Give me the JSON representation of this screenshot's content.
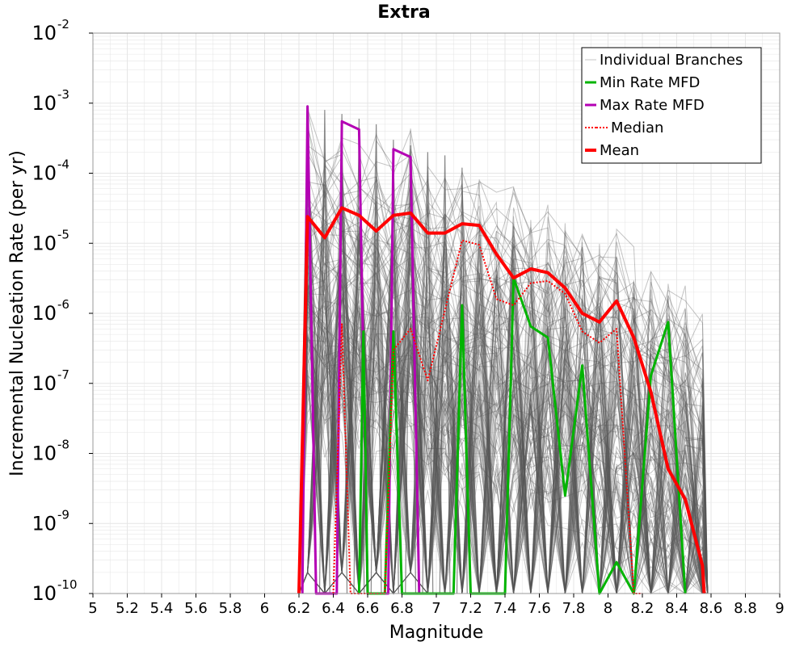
{
  "chart_data": {
    "type": "line",
    "title": "Extra",
    "xlabel": "Magnitude",
    "ylabel": "Incremental Nucleation Rate (per yr)",
    "xlim": [
      5,
      9
    ],
    "ylim": [
      1e-10,
      0.01
    ],
    "yscale": "log",
    "grid": true,
    "legend_position": "top-right",
    "x_ticks": [
      "5",
      "5.2",
      "5.4",
      "5.6",
      "5.8",
      "6",
      "6.2",
      "6.4",
      "6.6",
      "6.8",
      "7",
      "7.2",
      "7.4",
      "7.6",
      "7.8",
      "8",
      "8.2",
      "8.4",
      "8.6",
      "8.8",
      "9"
    ],
    "y_ticks": [
      {
        "base": "10",
        "exp": "-10",
        "value": 1e-10
      },
      {
        "base": "10",
        "exp": "-9",
        "value": 1e-09
      },
      {
        "base": "10",
        "exp": "-8",
        "value": 1e-08
      },
      {
        "base": "10",
        "exp": "-7",
        "value": 1e-07
      },
      {
        "base": "10",
        "exp": "-6",
        "value": 1e-06
      },
      {
        "base": "10",
        "exp": "-5",
        "value": 1e-05
      },
      {
        "base": "10",
        "exp": "-4",
        "value": 0.0001
      },
      {
        "base": "10",
        "exp": "-3",
        "value": 0.001
      },
      {
        "base": "10",
        "exp": "-2",
        "value": 0.01
      }
    ],
    "colors": {
      "branches": "#555555",
      "min": "#00b400",
      "max": "#b400b4",
      "median": "#ff0000",
      "mean": "#ff0000",
      "grid": "#e6e6e6",
      "axis": "#999999"
    },
    "series": [
      {
        "name": "Min Rate MFD",
        "style": "solid",
        "x": [
          6.55,
          6.575,
          6.6,
          6.7,
          6.75,
          6.8,
          7.1,
          7.15,
          7.2,
          7.4,
          7.45,
          7.55,
          7.65,
          7.75,
          7.85,
          7.95,
          8.05,
          8.15,
          8.25,
          8.35,
          8.45
        ],
        "y": [
          1e-10,
          5.5e-07,
          1e-10,
          1e-10,
          5.5e-07,
          1e-10,
          1e-10,
          1.3e-06,
          1e-10,
          1e-10,
          3.2e-06,
          6.5e-07,
          4.5e-07,
          2.5e-09,
          1.8e-07,
          1e-10,
          2.8e-10,
          1e-10,
          1.3e-07,
          7.5e-07,
          1e-10
        ]
      },
      {
        "name": "Max Rate MFD",
        "style": "solid",
        "x": [
          6.22,
          6.25,
          6.3,
          6.42,
          6.45,
          6.55,
          6.6,
          6.72,
          6.75,
          6.85,
          6.9
        ],
        "y": [
          1e-10,
          0.0009,
          1e-10,
          1e-10,
          0.00055,
          0.00042,
          1e-10,
          1e-10,
          0.00022,
          0.00017,
          1e-10
        ]
      },
      {
        "name": "Median",
        "style": "dotted",
        "x": [
          6.4,
          6.45,
          6.5,
          6.7,
          6.75,
          6.85,
          6.95,
          7.15,
          7.25,
          7.35,
          7.45,
          7.55,
          7.65,
          7.75,
          7.85,
          7.95,
          8.05,
          8.15,
          8.2
        ],
        "y": [
          1e-10,
          7e-07,
          1e-10,
          1e-10,
          3e-07,
          6e-07,
          1.1e-07,
          1.1e-05,
          9.5e-06,
          1.6e-06,
          1.3e-06,
          2.7e-06,
          2.9e-06,
          1.9e-06,
          5.5e-07,
          3.8e-07,
          6e-07,
          1e-10,
          1e-10
        ]
      },
      {
        "name": "Mean",
        "style": "solid",
        "x": [
          6.2,
          6.25,
          6.35,
          6.45,
          6.55,
          6.65,
          6.75,
          6.85,
          6.95,
          7.05,
          7.15,
          7.25,
          7.35,
          7.45,
          7.55,
          7.65,
          7.75,
          7.85,
          7.95,
          8.05,
          8.15,
          8.25,
          8.35,
          8.45,
          8.55,
          8.56
        ],
        "y": [
          1e-10,
          2.4e-05,
          1.2e-05,
          3.2e-05,
          2.5e-05,
          1.5e-05,
          2.5e-05,
          2.7e-05,
          1.4e-05,
          1.4e-05,
          1.9e-05,
          1.8e-05,
          7e-06,
          3.2e-06,
          4.3e-06,
          3.8e-06,
          2.3e-06,
          1e-06,
          7.5e-07,
          1.5e-06,
          4.5e-07,
          7.5e-08,
          6e-09,
          2.2e-09,
          2.5e-10,
          1e-10
        ]
      }
    ],
    "legend": [
      {
        "label": "Individual Branches",
        "key": "branches"
      },
      {
        "label": "Min Rate MFD",
        "key": "min"
      },
      {
        "label": "Max Rate MFD",
        "key": "max"
      },
      {
        "label": "Median",
        "key": "median"
      },
      {
        "label": "Mean",
        "key": "mean"
      }
    ]
  }
}
